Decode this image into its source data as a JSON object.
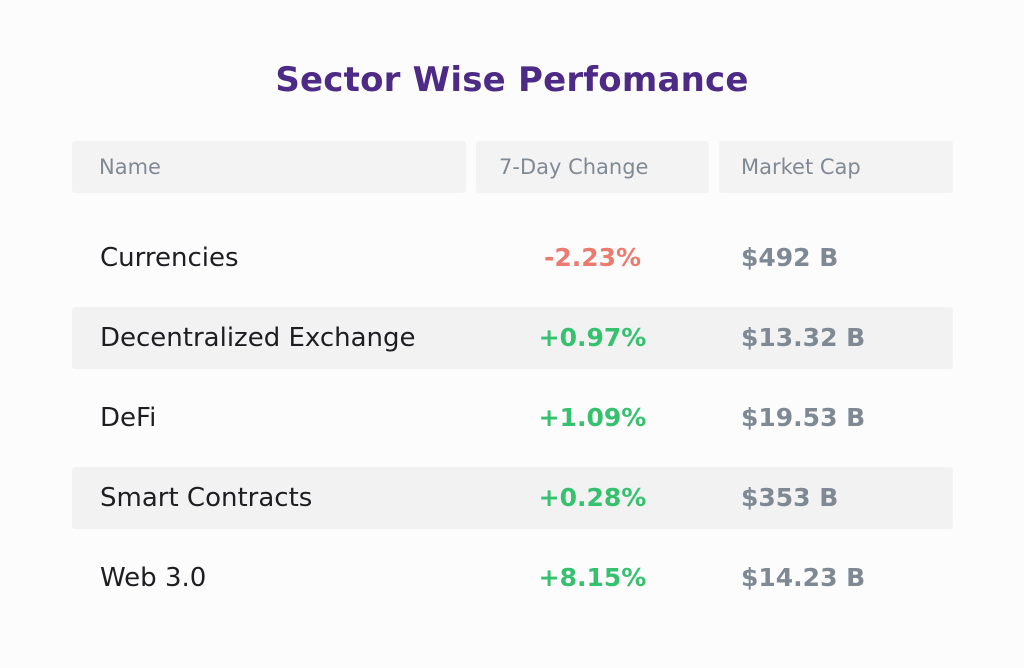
{
  "title": "Sector Wise Perfomance",
  "headers": {
    "name": "Name",
    "change": "7-Day Change",
    "cap": "Market Cap"
  },
  "rows": [
    {
      "name": "Currencies",
      "change": "-2.23%",
      "cap": "$492 B"
    },
    {
      "name": "Decentralized Exchange",
      "change": "+0.97%",
      "cap": "$13.32 B"
    },
    {
      "name": "DeFi",
      "change": "+1.09%",
      "cap": "$19.53 B"
    },
    {
      "name": "Smart Contracts",
      "change": "+0.28%",
      "cap": "$353 B"
    },
    {
      "name": "Web 3.0",
      "change": "+8.15%",
      "cap": "$14.23 B"
    }
  ],
  "colors": {
    "title": "#4d2a86",
    "negative": "#ec7b6f",
    "positive": "#35c16e",
    "muted": "#7e8994"
  }
}
